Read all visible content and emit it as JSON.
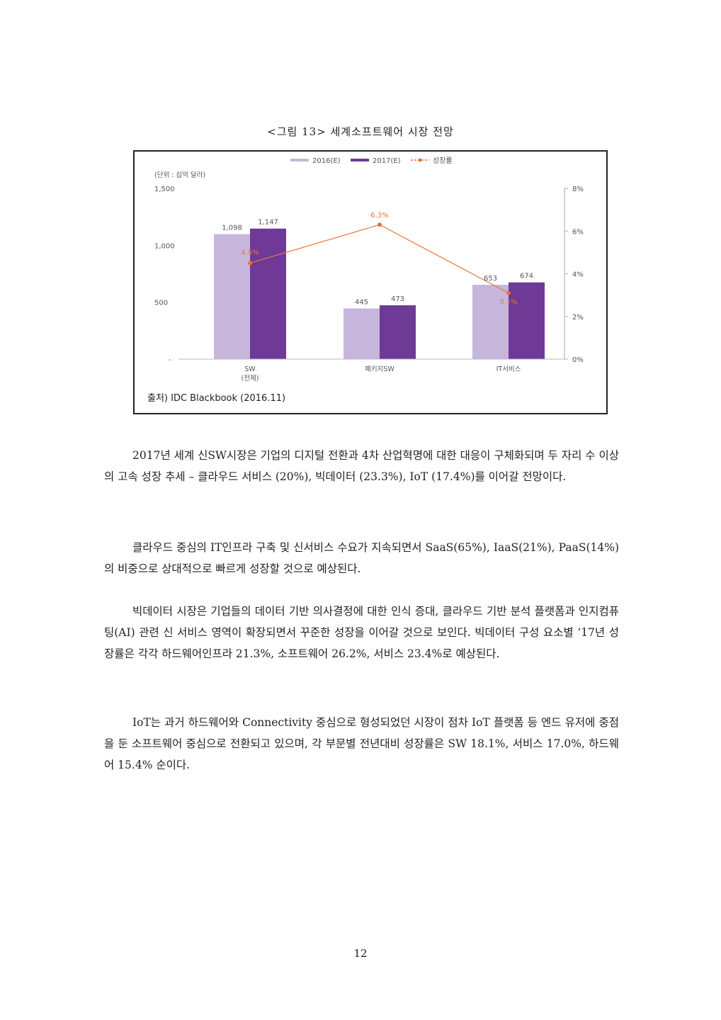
{
  "figure": {
    "caption": "<그림 13> 세계소프트웨어 시장 전망"
  },
  "chart_data": {
    "type": "bar",
    "unit_label": "(단위 : 십억 달러)",
    "categories": [
      "SW\n(전체)",
      "패키지SW",
      "IT서비스"
    ],
    "series": [
      {
        "name": "2016(E)",
        "values": [
          1098,
          445,
          653
        ],
        "color": "#c6b6dc",
        "value_labels": [
          "1,098",
          "445",
          "653"
        ]
      },
      {
        "name": "2017(E)",
        "values": [
          1147,
          473,
          674
        ],
        "color": "#6e3a96",
        "value_labels": [
          "1,147",
          "473",
          "674"
        ]
      }
    ],
    "growth": {
      "name": "성장률",
      "values": [
        4.5,
        6.3,
        3.1
      ],
      "labels": [
        "4.5%",
        "6.3%",
        "3.1%"
      ],
      "color": "#e8743b"
    },
    "y_left": {
      "ylim": [
        0,
        1500
      ],
      "ticks": [
        "1,500",
        "1,000",
        "500",
        "-"
      ],
      "tick_values": [
        1500,
        1000,
        500,
        0
      ]
    },
    "y_right": {
      "ylim": [
        0,
        8
      ],
      "ticks": [
        "8%",
        "6%",
        "4%",
        "2%",
        "0%"
      ],
      "tick_values": [
        8,
        6,
        4,
        2,
        0
      ]
    },
    "source": "출처) IDC Blackbook (2016.11)",
    "legend_position": "top"
  },
  "paragraphs": [
    "2017년 세계 신SW시장은 기업의 디지털 전환과 4차 산업혁명에 대한 대응이 구체화되며 두 자리 수 이상의 고속 성장 추세 – 클라우드 서비스 (20%), 빅데이터 (23.3%), IoT (17.4%)를 이어갈 전망이다.",
    "클라우드 중심의 IT인프라 구축 및 신서비스 수요가 지속되면서 SaaS(65%), IaaS(21%), PaaS(14%)의 비중으로 상대적으로 빠르게 성장할 것으로 예상된다.",
    "빅데이터 시장은 기업들의 데이터 기반 의사결정에 대한 인식 증대, 클라우드 기반 분석 플랫폼과 인지컴퓨팅(AI) 관련 신 서비스 영역이 확장되면서 꾸준한 성장을 이어갈 것으로 보인다. 빅데이터 구성 요소별 ‘17년 성장률은 각각 하드웨어인프라 21.3%, 소프트웨어 26.2%, 서비스 23.4%로 예상된다.",
    "IoT는 과거 하드웨어와 Connectivity 중심으로 형성되었던 시장이 점차 IoT 플랫폼 등 엔드 유저에 중점을 둔 소프트웨어 중심으로 전환되고 있으며, 각 부문별 전년대비 성장률은 SW 18.1%, 서비스 17.0%, 하드웨어 15.4% 순이다."
  ],
  "page_number": "12"
}
